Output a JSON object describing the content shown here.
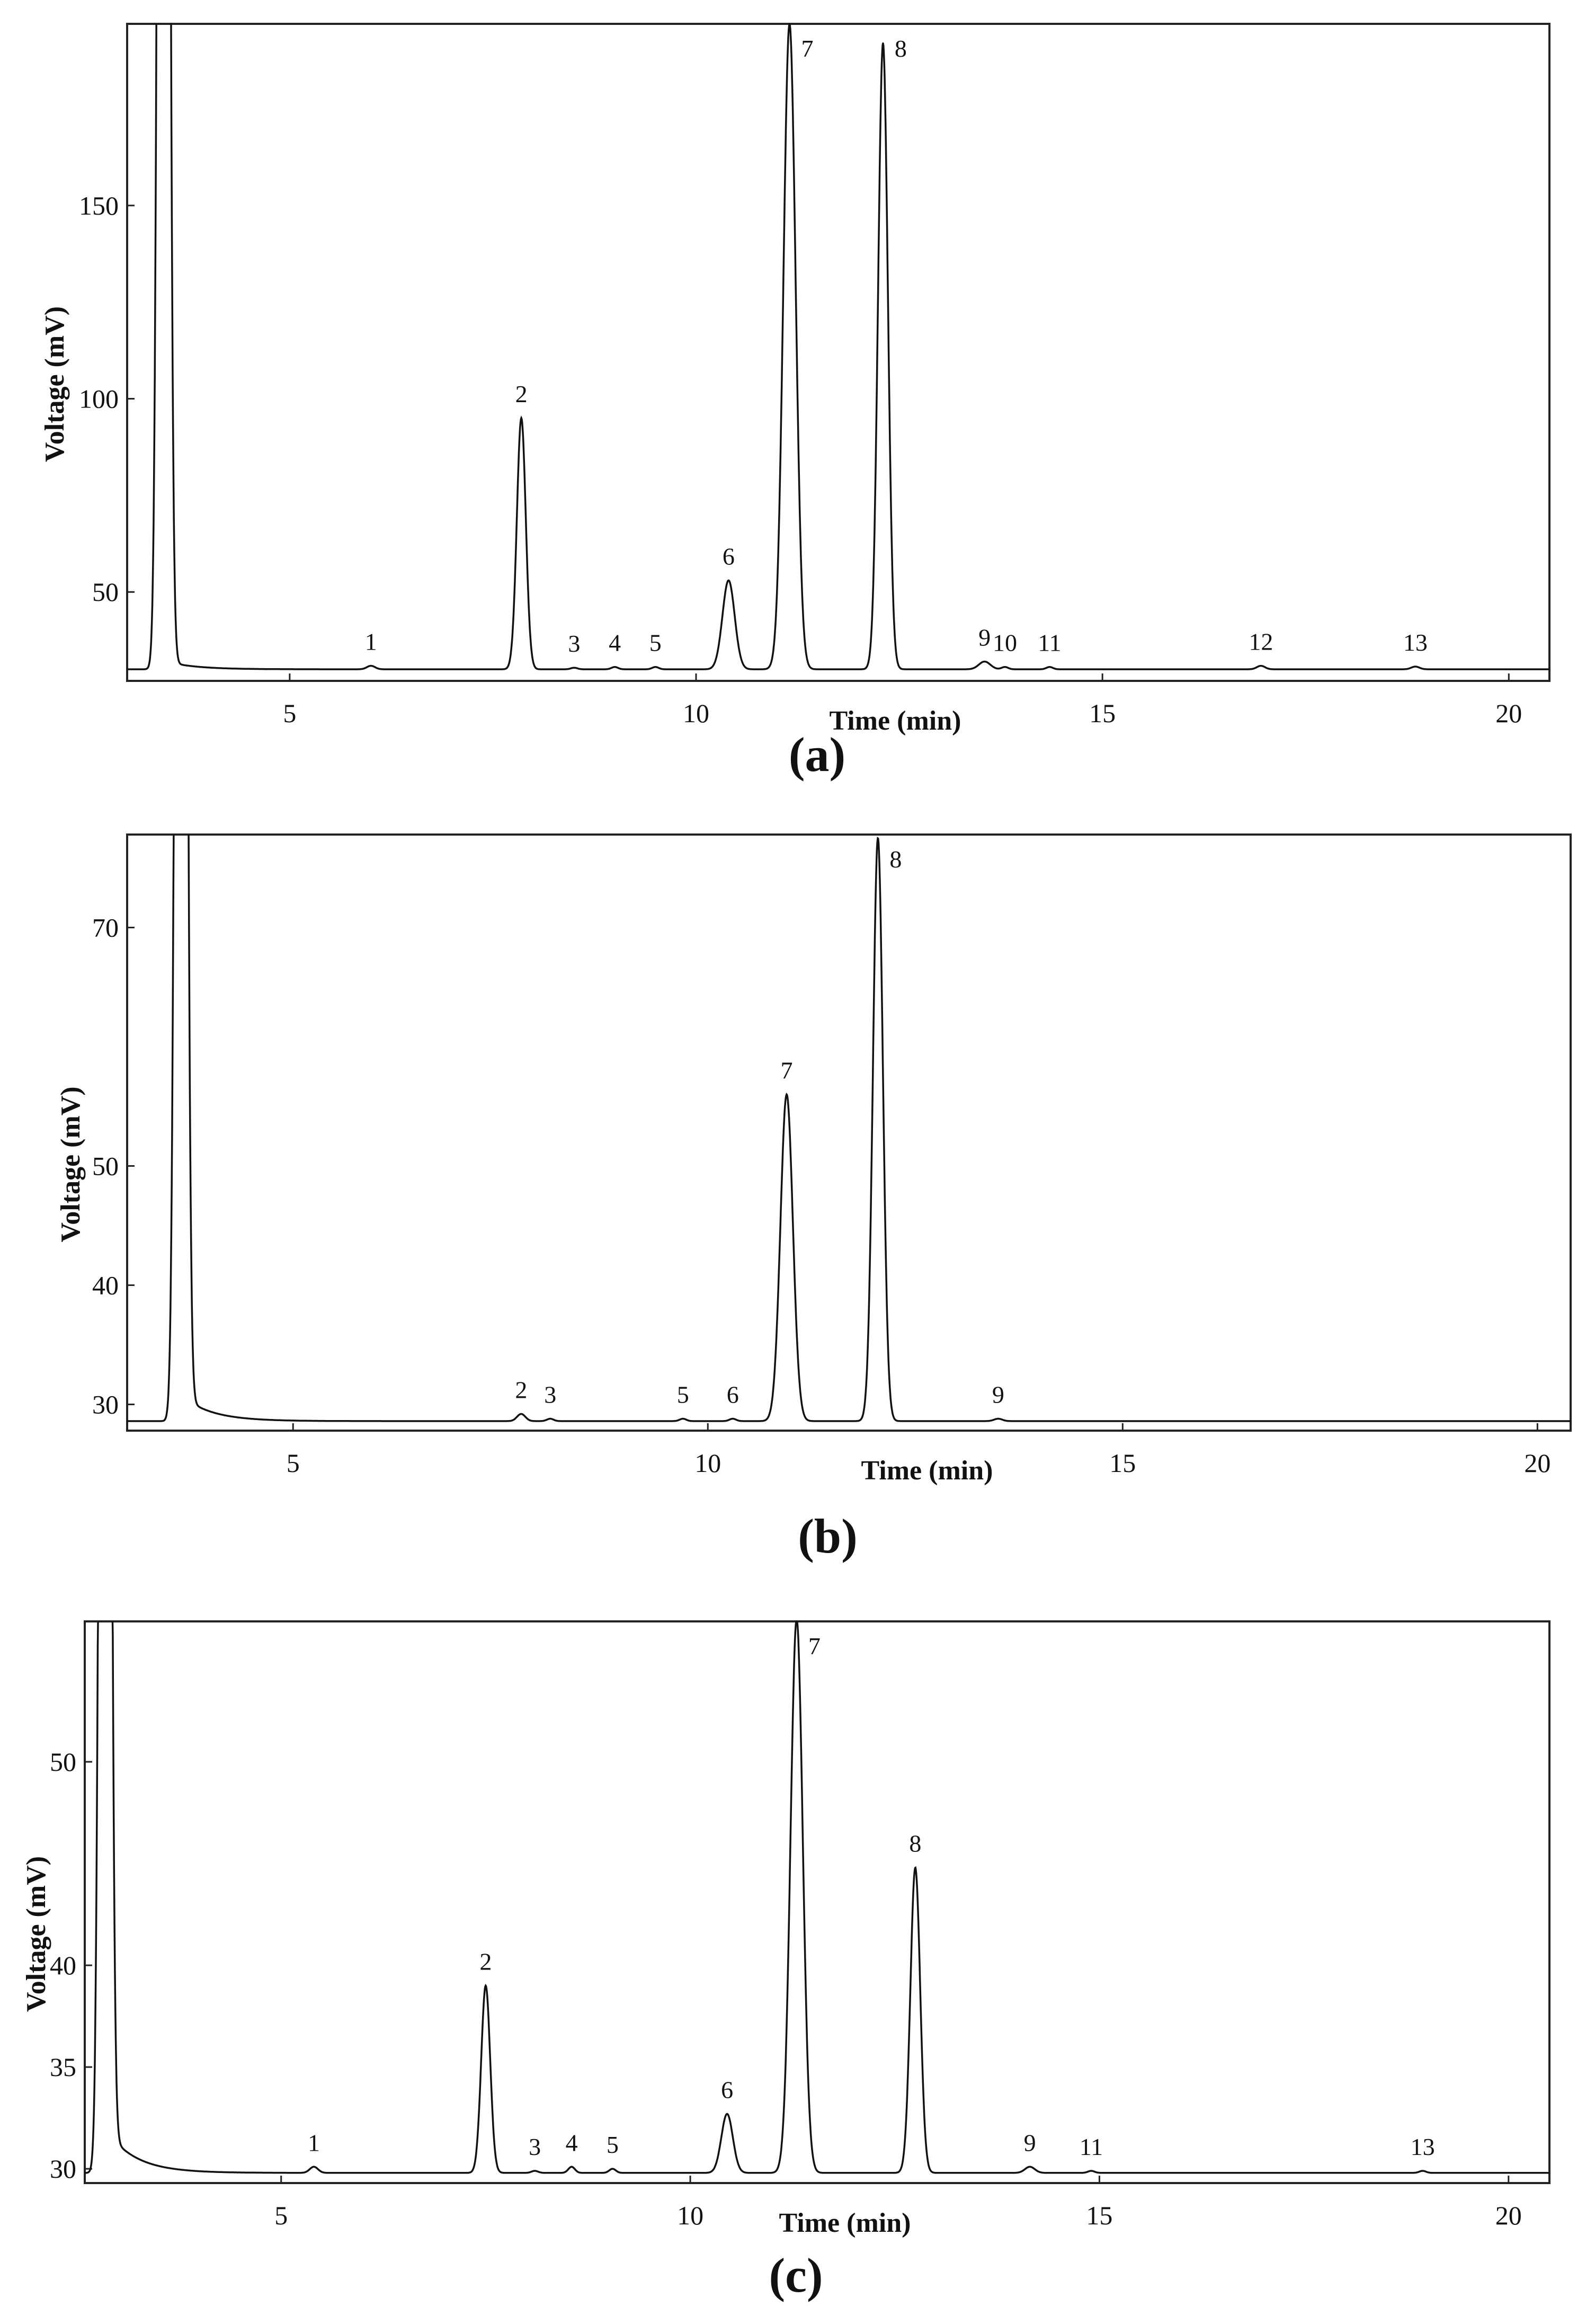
{
  "chart_data": [
    {
      "type": "line",
      "panel_label": "(a)",
      "xlabel": "Time (min)",
      "ylabel": "Voltage (mV)",
      "xlim": [
        3.0,
        20.5
      ],
      "ylim": [
        27,
        197
      ],
      "xticks": [
        "5",
        "10",
        "15",
        "20"
      ],
      "yticks": [
        "50",
        "100",
        "150"
      ],
      "baseline": 30,
      "solvent_peak": {
        "time": 3.45,
        "width": 0.05
      },
      "peaks": [
        {
          "label": "1",
          "time": 6.0,
          "height": 30.9,
          "width": 0.05
        },
        {
          "label": "2",
          "time": 7.85,
          "height": 95,
          "width": 0.055
        },
        {
          "label": "3",
          "time": 8.5,
          "height": 30.4,
          "width": 0.04
        },
        {
          "label": "4",
          "time": 9.0,
          "height": 30.6,
          "width": 0.04
        },
        {
          "label": "5",
          "time": 9.5,
          "height": 30.6,
          "width": 0.04
        },
        {
          "label": "6",
          "time": 10.4,
          "height": 53,
          "width": 0.075
        },
        {
          "label": "7",
          "time": 11.15,
          "height": 197,
          "width": 0.075
        },
        {
          "label": "8",
          "time": 12.3,
          "height": 192,
          "width": 0.06
        },
        {
          "label": "9",
          "time": 13.55,
          "height": 32,
          "width": 0.07
        },
        {
          "label": "10",
          "time": 13.8,
          "height": 30.6,
          "width": 0.04
        },
        {
          "label": "11",
          "time": 14.35,
          "height": 30.6,
          "width": 0.04
        },
        {
          "label": "12",
          "time": 16.95,
          "height": 30.9,
          "width": 0.05
        },
        {
          "label": "13",
          "time": 18.85,
          "height": 30.7,
          "width": 0.05
        }
      ]
    },
    {
      "type": "line",
      "panel_label": "(b)",
      "xlabel": "Time (min)",
      "ylabel": "Voltage (mV)",
      "xlim": [
        3.0,
        20.4
      ],
      "ylim": [
        27.8,
        77.8
      ],
      "xticks": [
        "5",
        "10",
        "15",
        "20"
      ],
      "yticks": [
        "30",
        "40",
        "50",
        "70"
      ],
      "baseline": 28.6,
      "solvent_peak": {
        "time": 3.65,
        "width": 0.05
      },
      "peaks": [
        {
          "label": "2",
          "time": 7.75,
          "height": 29.2,
          "width": 0.05
        },
        {
          "label": "3",
          "time": 8.1,
          "height": 28.8,
          "width": 0.04
        },
        {
          "label": "5",
          "time": 9.7,
          "height": 28.8,
          "width": 0.04
        },
        {
          "label": "6",
          "time": 10.3,
          "height": 28.8,
          "width": 0.04
        },
        {
          "label": "7",
          "time": 10.95,
          "height": 56,
          "width": 0.075
        },
        {
          "label": "8",
          "time": 12.05,
          "height": 77.5,
          "width": 0.06
        },
        {
          "label": "9",
          "time": 13.5,
          "height": 28.8,
          "width": 0.05
        }
      ]
    },
    {
      "type": "line",
      "panel_label": "(c)",
      "xlabel": "Time (min)",
      "ylabel": "Voltage (mV)",
      "xlim": [
        2.6,
        20.5
      ],
      "ylim": [
        29.3,
        56.9
      ],
      "xticks": [
        "5",
        "10",
        "15",
        "20"
      ],
      "yticks": [
        "30",
        "35",
        "40",
        "50"
      ],
      "baseline": 29.8,
      "solvent_peak": {
        "time": 2.85,
        "width": 0.05
      },
      "peaks": [
        {
          "label": "1",
          "time": 5.4,
          "height": 30.1,
          "width": 0.05
        },
        {
          "label": "2",
          "time": 7.5,
          "height": 39.0,
          "width": 0.055
        },
        {
          "label": "3",
          "time": 8.1,
          "height": 29.9,
          "width": 0.04
        },
        {
          "label": "4",
          "time": 8.55,
          "height": 30.1,
          "width": 0.04
        },
        {
          "label": "5",
          "time": 9.05,
          "height": 30.0,
          "width": 0.04
        },
        {
          "label": "6",
          "time": 10.45,
          "height": 32.7,
          "width": 0.07
        },
        {
          "label": "7",
          "time": 11.3,
          "height": 57,
          "width": 0.075
        },
        {
          "label": "8",
          "time": 12.75,
          "height": 44.8,
          "width": 0.06
        },
        {
          "label": "9",
          "time": 14.15,
          "height": 30.1,
          "width": 0.06
        },
        {
          "label": "11",
          "time": 14.9,
          "height": 29.9,
          "width": 0.04
        },
        {
          "label": "13",
          "time": 18.95,
          "height": 29.9,
          "width": 0.04
        }
      ]
    }
  ]
}
